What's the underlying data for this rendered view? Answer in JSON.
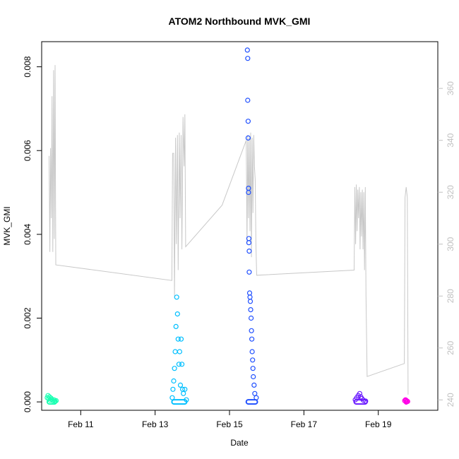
{
  "chart_data": {
    "type": "scatter",
    "title": "ATOM2 Northbound MVK_GMI",
    "xlabel": "Date",
    "ylabel": "MVK_GMI",
    "x_unit": "days (February)",
    "xlim": [
      9.95,
      20.6
    ],
    "ylim": [
      -0.0002,
      0.0086
    ],
    "y2lim": [
      236,
      378
    ],
    "x_ticks": [
      {
        "value": 11,
        "label": "Feb 11"
      },
      {
        "value": 13,
        "label": "Feb 13"
      },
      {
        "value": 15,
        "label": "Feb 15"
      },
      {
        "value": 17,
        "label": "Feb 17"
      },
      {
        "value": 19,
        "label": "Feb 19"
      }
    ],
    "y_ticks": [
      {
        "value": 0.0,
        "label": "0.000"
      },
      {
        "value": 0.002,
        "label": "0.002"
      },
      {
        "value": 0.004,
        "label": "0.004"
      },
      {
        "value": 0.006,
        "label": "0.006"
      },
      {
        "value": 0.008,
        "label": "0.008"
      }
    ],
    "y2_ticks": [
      {
        "value": 240,
        "label": "240"
      },
      {
        "value": 260,
        "label": "260"
      },
      {
        "value": 280,
        "label": "280"
      },
      {
        "value": 300,
        "label": "300"
      },
      {
        "value": 320,
        "label": "320"
      },
      {
        "value": 340,
        "label": "340"
      },
      {
        "value": 360,
        "label": "360"
      }
    ],
    "line_series": {
      "color": "#c8c8c8",
      "axis": "right",
      "points": [
        [
          10.15,
          334
        ],
        [
          10.17,
          297
        ],
        [
          10.19,
          337
        ],
        [
          10.21,
          310
        ],
        [
          10.23,
          357
        ],
        [
          10.25,
          297
        ],
        [
          10.27,
          367
        ],
        [
          10.29,
          302
        ],
        [
          10.31,
          369
        ],
        [
          10.33,
          292
        ],
        [
          13.45,
          286
        ],
        [
          13.47,
          335
        ],
        [
          13.5,
          335
        ],
        [
          13.52,
          280
        ],
        [
          13.55,
          341
        ],
        [
          13.57,
          300
        ],
        [
          13.6,
          342
        ],
        [
          13.62,
          290
        ],
        [
          13.65,
          343
        ],
        [
          13.67,
          310
        ],
        [
          13.7,
          342
        ],
        [
          13.72,
          298
        ],
        [
          13.75,
          349
        ],
        [
          13.78,
          330
        ],
        [
          13.8,
          350
        ],
        [
          13.82,
          299
        ],
        [
          14.8,
          315
        ],
        [
          15.45,
          340
        ],
        [
          15.47,
          300
        ],
        [
          15.49,
          342
        ],
        [
          15.51,
          310
        ],
        [
          15.53,
          341
        ],
        [
          15.55,
          305
        ],
        [
          15.57,
          343
        ],
        [
          15.59,
          295
        ],
        [
          15.61,
          341
        ],
        [
          15.63,
          312
        ],
        [
          15.65,
          342
        ],
        [
          15.67,
          330
        ],
        [
          15.69,
          325
        ],
        [
          15.71,
          300
        ],
        [
          15.73,
          288
        ],
        [
          18.35,
          290
        ],
        [
          18.37,
          322
        ],
        [
          18.39,
          300
        ],
        [
          18.41,
          323
        ],
        [
          18.43,
          305
        ],
        [
          18.45,
          321
        ],
        [
          18.47,
          310
        ],
        [
          18.49,
          322
        ],
        [
          18.51,
          298
        ],
        [
          18.53,
          320
        ],
        [
          18.55,
          303
        ],
        [
          18.57,
          321
        ],
        [
          18.59,
          298
        ],
        [
          18.61,
          320
        ],
        [
          18.63,
          290
        ],
        [
          18.65,
          322
        ],
        [
          18.67,
          280
        ],
        [
          18.7,
          249
        ],
        [
          19.7,
          254
        ],
        [
          19.72,
          318
        ],
        [
          19.75,
          322
        ],
        [
          19.78,
          318
        ],
        [
          19.8,
          242
        ]
      ]
    },
    "series": [
      {
        "color": "#1affb2",
        "x_range": [
          10.1,
          10.35
        ],
        "points": [
          [
            10.1,
            0.0001
          ],
          [
            10.12,
            0.00015
          ],
          [
            10.14,
            8e-05
          ],
          [
            10.16,
            0.00012
          ],
          [
            10.18,
            4e-05
          ],
          [
            10.2,
            9e-05
          ],
          [
            10.22,
            6e-05
          ],
          [
            10.25,
            3e-05
          ],
          [
            10.28,
            5e-05
          ],
          [
            10.31,
            2e-05
          ],
          [
            10.34,
            3e-05
          ]
        ]
      },
      {
        "color": "#00bfff",
        "x_range": [
          13.45,
          13.85
        ],
        "points": [
          [
            13.46,
            0.0001
          ],
          [
            13.48,
            0.0003
          ],
          [
            13.5,
            0.0005
          ],
          [
            13.52,
            0.0008
          ],
          [
            13.54,
            0.0012
          ],
          [
            13.56,
            0.0018
          ],
          [
            13.58,
            0.0025
          ],
          [
            13.6,
            0.0021
          ],
          [
            13.62,
            0.0015
          ],
          [
            13.64,
            0.0009
          ],
          [
            13.66,
            0.0012
          ],
          [
            13.68,
            0.0004
          ],
          [
            13.7,
            0.0015
          ],
          [
            13.72,
            0.0009
          ],
          [
            13.74,
            0.0003
          ],
          [
            13.76,
            0.0002
          ],
          [
            13.8,
            0.0003
          ],
          [
            13.84,
            5e-05
          ]
        ]
      },
      {
        "color": "#2050ff",
        "x_range": [
          15.45,
          15.75
        ],
        "points": [
          [
            15.48,
            0.0084
          ],
          [
            15.49,
            0.0082
          ],
          [
            15.49,
            0.0072
          ],
          [
            15.5,
            0.0067
          ],
          [
            15.5,
            0.0063
          ],
          [
            15.51,
            0.0051
          ],
          [
            15.51,
            0.005
          ],
          [
            15.52,
            0.0039
          ],
          [
            15.52,
            0.0038
          ],
          [
            15.53,
            0.0036
          ],
          [
            15.53,
            0.0031
          ],
          [
            15.54,
            0.0026
          ],
          [
            15.55,
            0.0025
          ],
          [
            15.56,
            0.0024
          ],
          [
            15.57,
            0.0022
          ],
          [
            15.58,
            0.002
          ],
          [
            15.59,
            0.0017
          ],
          [
            15.6,
            0.0015
          ],
          [
            15.61,
            0.0012
          ],
          [
            15.62,
            0.001
          ],
          [
            15.63,
            0.0008
          ],
          [
            15.64,
            0.0006
          ],
          [
            15.66,
            0.0004
          ],
          [
            15.68,
            0.0002
          ],
          [
            15.72,
            0.0001
          ]
        ]
      },
      {
        "color": "#6a1aff",
        "x_range": [
          18.35,
          18.7
        ],
        "points": [
          [
            18.38,
            5e-05
          ],
          [
            18.42,
            0.0001
          ],
          [
            18.46,
            0.00015
          ],
          [
            18.5,
            0.0002
          ],
          [
            18.53,
            0.00012
          ],
          [
            18.56,
            8e-05
          ],
          [
            18.6,
            4e-05
          ],
          [
            18.66,
            2e-05
          ]
        ]
      },
      {
        "color": "#ff00e6",
        "x_range": [
          19.7,
          19.8
        ],
        "points": [
          [
            19.71,
            3e-05
          ],
          [
            19.73,
            5e-05
          ],
          [
            19.75,
            4e-05
          ],
          [
            19.77,
            2e-05
          ],
          [
            19.79,
            1e-05
          ]
        ]
      }
    ]
  }
}
